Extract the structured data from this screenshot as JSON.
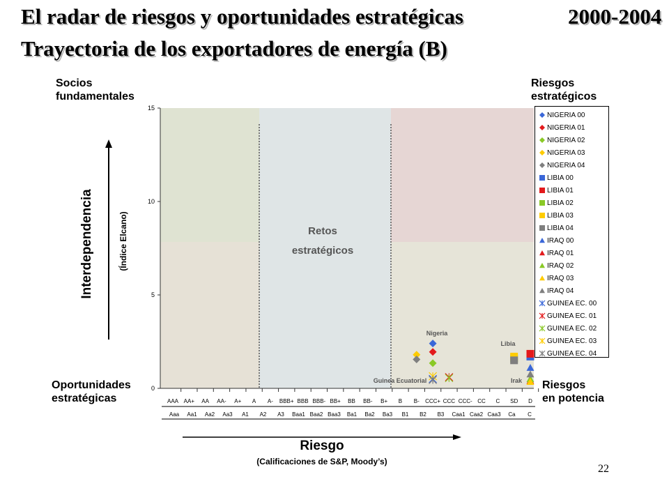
{
  "header": {
    "title_line1": "El radar de riesgos y oportunidades estratégicas",
    "period": "2000-2004",
    "title_line2": "Trayectoria de los exportadores de energía (B)"
  },
  "quadrants": {
    "top_left": [
      "Socios",
      "fundamentales"
    ],
    "top_right": [
      "Riesgos",
      "estratégicos"
    ],
    "bottom_left": [
      "Oportunidades",
      "estratégicas"
    ],
    "bottom_right": [
      "Riesgos",
      "en potencia"
    ],
    "center": [
      "Retos",
      "estratégicos"
    ]
  },
  "axes": {
    "y_label": "Interdependencia",
    "y_sublabel": "(Índice Elcano)",
    "x_label": "Riesgo",
    "x_sublabel": "(Calificaciones de S&P, Moody’s)"
  },
  "page_number": "22",
  "chart_data": {
    "type": "scatter",
    "ylim": [
      0,
      15
    ],
    "yticks": [
      0,
      5,
      10,
      15
    ],
    "x_categories_sp": [
      "AAA",
      "AA+",
      "AA",
      "AA-",
      "A+",
      "A",
      "A-",
      "BBB+",
      "BBB",
      "BBB-",
      "BB+",
      "BB",
      "BB-",
      "B+",
      "B",
      "B-",
      "CCC+",
      "CCC",
      "CCC-",
      "CC",
      "C",
      "SD",
      "D"
    ],
    "x_categories_moodys": [
      "Aaa",
      "Aa1",
      "Aa2",
      "Aa3",
      "A1",
      "A2",
      "A3",
      "Baa1",
      "Baa2",
      "Baa3",
      "Ba1",
      "Ba2",
      "Ba3",
      "B1",
      "B2",
      "B3",
      "Caa1",
      "Caa2",
      "Caa3",
      "Ca",
      "C"
    ],
    "country_labels": [
      "Nigeria",
      "Libia",
      "Guinea Ecuatorial",
      "Irak"
    ],
    "series": [
      {
        "name": "NIGERIA 00",
        "marker": "diamond",
        "color": "#3a67d8",
        "x": "CCC+",
        "y": 2.4
      },
      {
        "name": "NIGERIA 01",
        "marker": "diamond",
        "color": "#e31a1c",
        "x": "CCC+",
        "y": 1.95
      },
      {
        "name": "NIGERIA 02",
        "marker": "diamond",
        "color": "#8ac926",
        "x": "CCC+",
        "y": 1.35
      },
      {
        "name": "NIGERIA 03",
        "marker": "diamond",
        "color": "#ffcc00",
        "x": "B-",
        "y": 1.8
      },
      {
        "name": "NIGERIA 04",
        "marker": "diamond",
        "color": "#7f7f7f",
        "x": "B-",
        "y": 1.55
      },
      {
        "name": "LIBIA 00",
        "marker": "square",
        "color": "#3a67d8",
        "x": "D",
        "y": 1.7
      },
      {
        "name": "LIBIA 01",
        "marker": "square",
        "color": "#e31a1c",
        "x": "D",
        "y": 1.85
      },
      {
        "name": "LIBIA 02",
        "marker": "square",
        "color": "#8ac926",
        "x": "SD",
        "y": 1.6
      },
      {
        "name": "LIBIA 03",
        "marker": "square",
        "color": "#ffcc00",
        "x": "SD",
        "y": 1.7
      },
      {
        "name": "LIBIA 04",
        "marker": "square",
        "color": "#7f7f7f",
        "x": "SD",
        "y": 1.5
      },
      {
        "name": "IRAQ 00",
        "marker": "triangle",
        "color": "#3a67d8",
        "x": "D",
        "y": 1.1
      },
      {
        "name": "IRAQ 01",
        "marker": "triangle",
        "color": "#e31a1c",
        "x": "D",
        "y": 0.4
      },
      {
        "name": "IRAQ 02",
        "marker": "triangle",
        "color": "#8ac926",
        "x": "D",
        "y": 0.5
      },
      {
        "name": "IRAQ 03",
        "marker": "triangle",
        "color": "#ffcc00",
        "x": "D",
        "y": 0.35
      },
      {
        "name": "IRAQ 04",
        "marker": "triangle",
        "color": "#7f7f7f",
        "x": "D",
        "y": 0.75
      },
      {
        "name": "GUINEA EC. 00",
        "marker": "star",
        "color": "#3a67d8",
        "x": "CCC+",
        "y": 0.5
      },
      {
        "name": "GUINEA EC. 01",
        "marker": "star",
        "color": "#e31a1c",
        "x": "CCC",
        "y": 0.6
      },
      {
        "name": "GUINEA EC. 02",
        "marker": "star",
        "color": "#8ac926",
        "x": "CCC",
        "y": 0.55
      },
      {
        "name": "GUINEA EC. 03",
        "marker": "star",
        "color": "#ffcc00",
        "x": "CCC+",
        "y": 0.65
      },
      {
        "name": "GUINEA EC. 04",
        "marker": "star",
        "color": "#7f7f7f",
        "x": "CCC+",
        "y": 0.45
      }
    ],
    "legend": [
      "NIGERIA 00",
      "NIGERIA 01",
      "NIGERIA 02",
      "NIGERIA 03",
      "NIGERIA 04",
      "LIBIA 00",
      "LIBIA 01",
      "LIBIA 02",
      "LIBIA 03",
      "LIBIA 04",
      "IRAQ 00",
      "IRAQ 01",
      "IRAQ 02",
      "IRAQ 03",
      "IRAQ 04",
      "GUINEA EC. 00",
      "GUINEA EC. 01",
      "GUINEA EC. 02",
      "GUINEA EC. 03",
      "GUINEA EC. 04"
    ],
    "legend_placement": "right",
    "grid": false,
    "colors": {
      "green_zone": "#dfe3d2",
      "pink_zone": "#e6d6d4",
      "beige_zone": "#e6e1d6",
      "blue_zone": "#dfe5e6",
      "sand_zone": "#e6e4d8"
    }
  }
}
